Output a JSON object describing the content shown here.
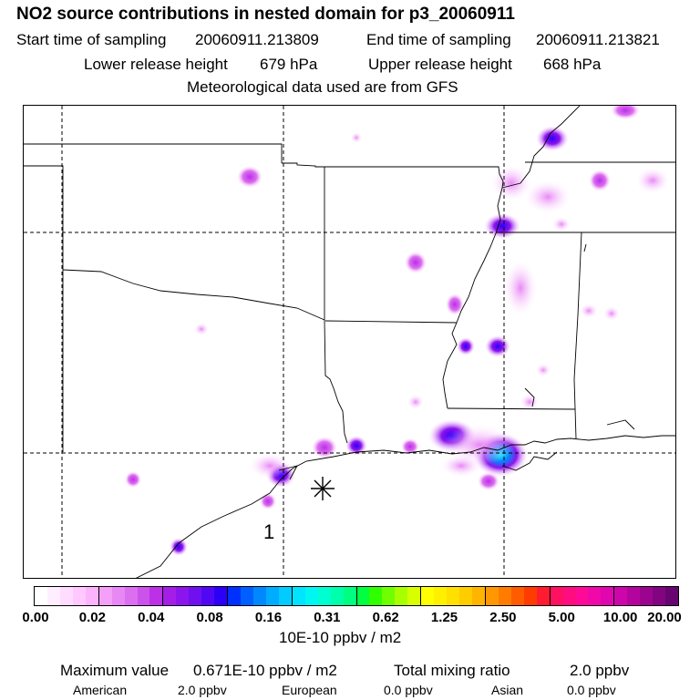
{
  "header": {
    "title": "NO2 source contributions in nested domain for p3_20060911",
    "start_label": "Start time of sampling",
    "start_value": "20060911.213809",
    "end_label": "End time of sampling",
    "end_value": "20060911.213821",
    "lower_label": "Lower release height",
    "lower_value": "679 hPa",
    "upper_label": "Upper release height",
    "upper_value": "668 hPa",
    "met_line": "Meteorological data used are from GFS"
  },
  "map": {
    "receptor_label": "1",
    "receptor_symbol": "asterisk"
  },
  "colorbar": {
    "ticks": [
      "0.00",
      "0.02",
      "0.04",
      "0.08",
      "0.16",
      "0.31",
      "0.62",
      "1.25",
      "2.50",
      "5.00",
      "10.00",
      "20.00"
    ],
    "unit_label": "10E-10 ppbv / m2",
    "colors": [
      [
        "#ffffff",
        "#ffeeff",
        "#ffdcff",
        "#ffc8ff",
        "#fbb4fb"
      ],
      [
        "#f4a0f8",
        "#e888f5",
        "#dc6ef0",
        "#cc52ec",
        "#bc30e6"
      ],
      [
        "#a41ee8",
        "#8c14ec",
        "#7010f0",
        "#5008f4",
        "#2c00f8"
      ],
      [
        "#0030ff",
        "#0060ff",
        "#0088ff",
        "#00acff",
        "#00ccff"
      ],
      [
        "#00e4ff",
        "#00f6f0",
        "#00ffd0",
        "#00ffaa",
        "#00ff80"
      ],
      [
        "#00ff40",
        "#30ff00",
        "#70ff00",
        "#a8ff00",
        "#d8ff00"
      ],
      [
        "#ffff00",
        "#fff000",
        "#ffe000",
        "#ffcc00",
        "#ffb400"
      ],
      [
        "#ff9800",
        "#ff7c00",
        "#ff5c00",
        "#ff3c00",
        "#ff1c30"
      ],
      [
        "#ff1060",
        "#ff0c80",
        "#ff0a98",
        "#f008a8",
        "#e006b0"
      ],
      [
        "#cc06aa",
        "#b4049e",
        "#9c0490",
        "#820480",
        "#680470"
      ]
    ]
  },
  "footer": {
    "max_label": "Maximum value",
    "max_value": "0.671E-10 ppbv / m2",
    "total_label": "Total mixing ratio",
    "total_value": "2.0 ppbv",
    "american_label": "American",
    "american_value": "2.0 ppbv",
    "european_label": "European",
    "european_value": "0.0 ppbv",
    "asian_label": "Asian",
    "asian_value": "0.0 ppbv"
  }
}
